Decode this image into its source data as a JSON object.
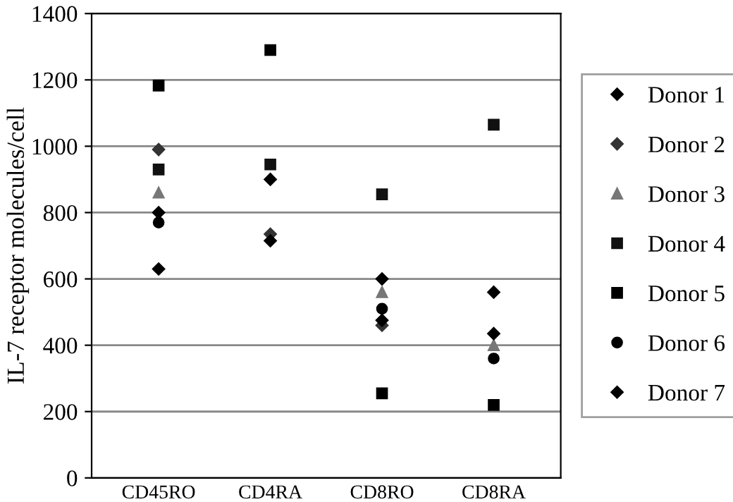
{
  "chart_data": {
    "type": "scatter",
    "ylabel": "IL-7 receptor molecules/cell",
    "categories": [
      "CD45RO",
      "CD4RA",
      "CD8RO",
      "CD8RA"
    ],
    "ylim": [
      0,
      1400
    ],
    "yticks": [
      0,
      200,
      400,
      600,
      800,
      1000,
      1200,
      1400
    ],
    "grid": "y",
    "legend": "right",
    "series": [
      {
        "name": "Donor 1",
        "color": "#000000",
        "marker": "diamond",
        "values": [
          800,
          900,
          600,
          560
        ]
      },
      {
        "name": "Donor 2",
        "color": "#333333",
        "marker": "diamond",
        "values": [
          990,
          735,
          460,
          null
        ]
      },
      {
        "name": "Donor 3",
        "color": "#777777",
        "marker": "triangle",
        "values": [
          860,
          null,
          560,
          400
        ]
      },
      {
        "name": "Donor 4",
        "color": "#111111",
        "marker": "square",
        "values": [
          930,
          945,
          855,
          1065
        ]
      },
      {
        "name": "Donor 5",
        "color": "#000000",
        "marker": "square",
        "values": [
          1183,
          1290,
          255,
          220
        ]
      },
      {
        "name": "Donor 6",
        "color": "#000000",
        "marker": "circle",
        "values": [
          770,
          null,
          510,
          360
        ]
      },
      {
        "name": "Donor 7",
        "color": "#000000",
        "marker": "diamond",
        "values": [
          630,
          715,
          475,
          435
        ]
      }
    ]
  }
}
